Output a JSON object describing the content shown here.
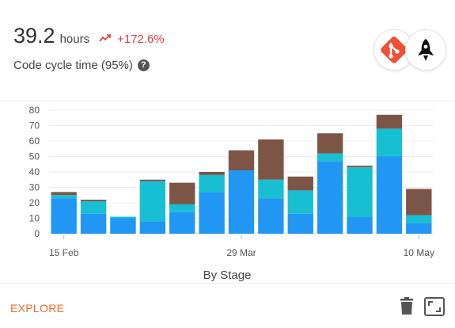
{
  "metric": {
    "value": "39.2",
    "unit": "hours",
    "trend_icon": "trend-up-icon",
    "change": "+172.6%",
    "label": "Code cycle time (95%)",
    "help_icon": "help-icon",
    "help_glyph": "?"
  },
  "badges": [
    {
      "name": "git-icon",
      "color": "#f05033"
    },
    {
      "name": "rocket-icon",
      "color": "#111111"
    }
  ],
  "chart_data": {
    "type": "bar",
    "stacked": true,
    "title": "",
    "xlabel": "By Stage",
    "ylabel": "",
    "ylim": [
      0,
      80
    ],
    "yticks": [
      0,
      10,
      20,
      30,
      40,
      50,
      60,
      70,
      80
    ],
    "x_tick_labels": [
      {
        "label": "15 Feb",
        "index": 0
      },
      {
        "label": "29 Mar",
        "index": 6
      },
      {
        "label": "10 May",
        "index": 12
      }
    ],
    "grid": true,
    "legend": "none",
    "series": [
      {
        "color": "#2196f3",
        "values": [
          23,
          13,
          10,
          8,
          14,
          27,
          41,
          23,
          13,
          47,
          11,
          50,
          7
        ]
      },
      {
        "color": "#18bfd3",
        "values": [
          2,
          8,
          1,
          26,
          5,
          11,
          0,
          12,
          15,
          5,
          32,
          18,
          5
        ]
      },
      {
        "color": "#7d5547",
        "values": [
          2,
          1,
          0,
          1,
          14,
          2,
          13,
          26,
          9,
          13,
          1,
          9,
          17
        ]
      }
    ]
  },
  "footer": {
    "explore_label": "EXPLORE",
    "trash_icon": "trash-icon",
    "expand_icon": "expand-icon"
  }
}
